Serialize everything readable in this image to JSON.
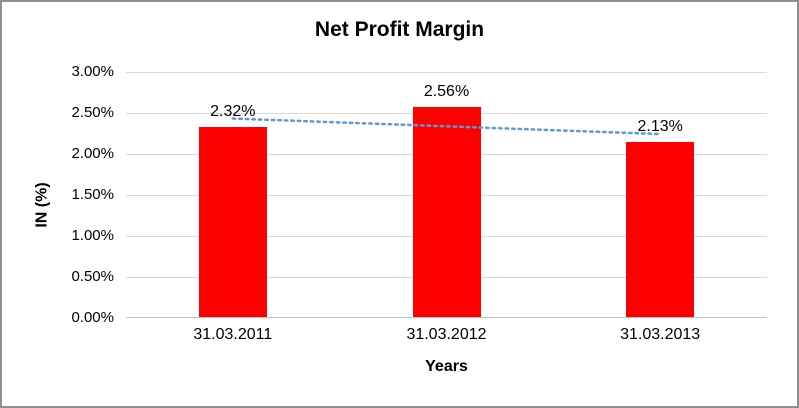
{
  "chart_data": {
    "type": "bar",
    "title": "Net Profit Margin",
    "xlabel": "Years",
    "ylabel": "IN (%)",
    "categories": [
      "31.03.2011",
      "31.03.2012",
      "31.03.2013"
    ],
    "values": [
      2.32,
      2.56,
      2.13
    ],
    "data_labels": [
      "2.32%",
      "2.56%",
      "2.13%"
    ],
    "ylim": [
      0,
      3
    ],
    "ytick_step": 0.5,
    "ytick_labels": [
      "0.00%",
      "0.50%",
      "1.00%",
      "1.50%",
      "2.00%",
      "2.50%",
      "3.00%"
    ],
    "grid": true,
    "legend": false,
    "bar_color": "#FF0000",
    "trendline": {
      "type": "linear",
      "style": "dotted",
      "color": "#5B9BD5",
      "endpoints": [
        2.43,
        2.24
      ]
    }
  }
}
